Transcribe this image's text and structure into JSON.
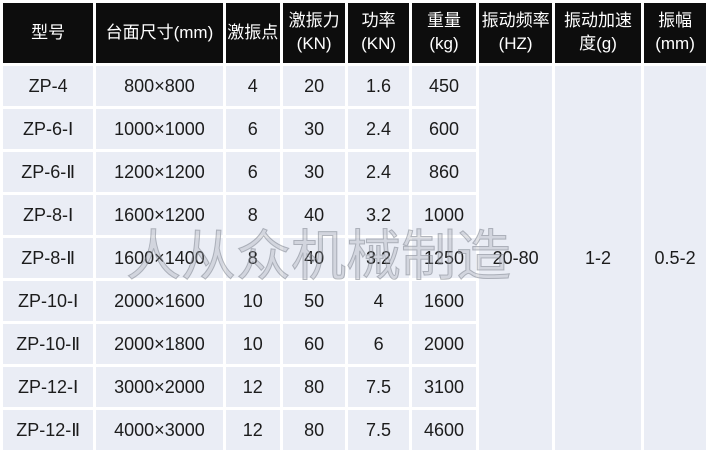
{
  "table": {
    "columns": [
      "型号",
      "台面尺寸(mm)",
      "激振点",
      "激振力(KN)",
      "功率(KN)",
      "重量(kg)",
      "振动频率(HZ)",
      "振动加速度(g)",
      "振幅(mm)"
    ],
    "rows": [
      [
        "ZP-4",
        "800×800",
        "4",
        "20",
        "1.6",
        "450"
      ],
      [
        "ZP-6-Ⅰ",
        "1000×1000",
        "6",
        "30",
        "2.4",
        "600"
      ],
      [
        "ZP-6-Ⅱ",
        "1200×1200",
        "6",
        "30",
        "2.4",
        "860"
      ],
      [
        "ZP-8-Ⅰ",
        "1600×1200",
        "8",
        "40",
        "3.2",
        "1000"
      ],
      [
        "ZP-8-Ⅱ",
        "1600×1400",
        "8",
        "40",
        "3.2",
        "1250"
      ],
      [
        "ZP-10-Ⅰ",
        "2000×1600",
        "10",
        "50",
        "4",
        "1600"
      ],
      [
        "ZP-10-Ⅱ",
        "2000×1800",
        "10",
        "60",
        "6",
        "2000"
      ],
      [
        "ZP-12-Ⅰ",
        "3000×2000",
        "12",
        "80",
        "7.5",
        "3100"
      ],
      [
        "ZP-12-Ⅱ",
        "4000×3000",
        "12",
        "80",
        "7.5",
        "4600"
      ]
    ],
    "merged_values": [
      "20-80",
      "1-2",
      "0.5-2"
    ]
  },
  "watermark": {
    "text": "人从众机械制造"
  },
  "colors": {
    "header_bg": "#0d0d0d",
    "header_text": "#ffffff",
    "cell_bg": "#eaedf5",
    "divider": "#ffffff",
    "cell_text": "#1c1c1c",
    "watermark": "#9aa0a8"
  }
}
